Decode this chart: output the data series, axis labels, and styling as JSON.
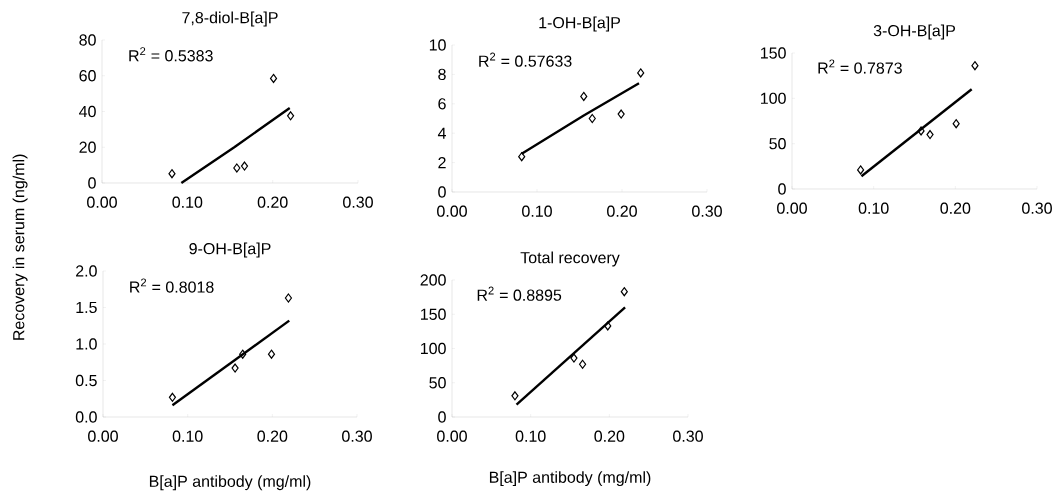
{
  "chart_data": [
    {
      "type": "scatter",
      "title": "7,8-diol-B[a]P",
      "ylabel": "Recovery in serum (ng/ml)",
      "annotations": [
        "R$^{2}$ = 0.5383"
      ],
      "xlim": [
        0,
        0.3
      ],
      "ylim": [
        0,
        80
      ],
      "xticks": [
        {
          "value": 0,
          "label": "0.00"
        },
        {
          "value": 0.1,
          "label": "0.10"
        },
        {
          "value": 0.2,
          "label": "0.20"
        },
        {
          "value": 0.3,
          "label": "0.30"
        }
      ],
      "yticks": [
        0,
        20,
        40,
        60,
        80
      ],
      "series": [
        {
          "type": "scatter",
          "marker": "diamond",
          "color": "#000000",
          "x": [
            0.082,
            0.158,
            0.167,
            0.201,
            0.221
          ],
          "values": [
            5.2,
            8.4,
            9.5,
            58.5,
            37.6
          ]
        },
        {
          "type": "line",
          "marker": "none",
          "line_style": "solid",
          "color": "#000000",
          "x": [
            0.093,
            0.155,
            0.22
          ],
          "values": [
            0,
            20,
            42
          ]
        }
      ]
    },
    {
      "type": "scatter",
      "title": "1-OH-B[a]P",
      "annotations": [
        "R$^{2}$ = 0.57633"
      ],
      "xlim": [
        0,
        0.3
      ],
      "ylim": [
        0,
        10
      ],
      "xticks": [
        {
          "value": 0,
          "label": "0.00"
        },
        {
          "value": 0.1,
          "label": "0.10"
        },
        {
          "value": 0.2,
          "label": "0.20"
        },
        {
          "value": 0.3,
          "label": "0.30"
        }
      ],
      "yticks": [
        0,
        2,
        4,
        6,
        8,
        10
      ],
      "series": [
        {
          "type": "scatter",
          "marker": "diamond",
          "color": "#000000",
          "x": [
            0.082,
            0.155,
            0.165,
            0.199,
            0.222
          ],
          "values": [
            2.4,
            6.5,
            5.0,
            5.3,
            8.1
          ]
        },
        {
          "type": "line",
          "marker": "none",
          "line_style": "solid",
          "color": "#000000",
          "x": [
            0.082,
            0.155,
            0.22
          ],
          "values": [
            2.6,
            5.2,
            7.4
          ]
        }
      ]
    },
    {
      "type": "scatter",
      "title": "3-OH-B[a]P",
      "annotations": [
        "R$^{2}$ = 0.7873"
      ],
      "xlim": [
        0,
        0.3
      ],
      "ylim": [
        0,
        150
      ],
      "xticks": [
        {
          "value": 0,
          "label": "0.00"
        },
        {
          "value": 0.1,
          "label": "0.10"
        },
        {
          "value": 0.2,
          "label": "0.20"
        },
        {
          "value": 0.3,
          "label": "0.30"
        }
      ],
      "yticks": [
        0,
        50,
        100,
        150
      ],
      "series": [
        {
          "type": "scatter",
          "marker": "diamond",
          "color": "#000000",
          "x": [
            0.084,
            0.158,
            0.169,
            0.201,
            0.224
          ],
          "values": [
            21,
            64,
            60,
            72,
            136
          ]
        },
        {
          "type": "line",
          "marker": "none",
          "line_style": "solid",
          "color": "#000000",
          "x": [
            0.085,
            0.22
          ],
          "values": [
            14,
            110
          ]
        }
      ]
    },
    {
      "type": "scatter",
      "title": "9-OH-B[a]P",
      "xlabel": "B[a]P antibody (mg/ml)",
      "annotations": [
        "R$^{2}$ = 0.8018"
      ],
      "xlim": [
        0,
        0.3
      ],
      "ylim": [
        0,
        2
      ],
      "xticks": [
        {
          "value": 0,
          "label": "0.00"
        },
        {
          "value": 0.1,
          "label": "0.10"
        },
        {
          "value": 0.2,
          "label": "0.20"
        },
        {
          "value": 0.3,
          "label": "0.30"
        }
      ],
      "yticks": [
        {
          "value": 0,
          "label": "0.0"
        },
        {
          "value": 0.5,
          "label": "0.5"
        },
        {
          "value": 1,
          "label": "1.0"
        },
        {
          "value": 1.5,
          "label": "1.5"
        },
        {
          "value": 2,
          "label": "2.0"
        }
      ],
      "series": [
        {
          "type": "scatter",
          "marker": "diamond",
          "color": "#000000",
          "x": [
            0.082,
            0.156,
            0.165,
            0.199,
            0.219
          ],
          "values": [
            0.27,
            0.67,
            0.86,
            0.86,
            1.63
          ]
        },
        {
          "type": "line",
          "marker": "none",
          "line_style": "solid",
          "color": "#000000",
          "x": [
            0.082,
            0.22
          ],
          "values": [
            0.16,
            1.32
          ]
        }
      ]
    },
    {
      "type": "scatter",
      "title": "Total recovery",
      "xlabel": "B[a]P antibody (mg/ml)",
      "annotations": [
        "R$^{2}$ = 0.8895"
      ],
      "xlim": [
        0,
        0.3
      ],
      "ylim": [
        0,
        200
      ],
      "xticks": [
        {
          "value": 0,
          "label": "0.00"
        },
        {
          "value": 0.1,
          "label": "0.10"
        },
        {
          "value": 0.2,
          "label": "0.20"
        },
        {
          "value": 0.3,
          "label": "0.30"
        }
      ],
      "yticks": [
        0,
        50,
        100,
        150,
        200
      ],
      "series": [
        {
          "type": "scatter",
          "marker": "diamond",
          "color": "#000000",
          "x": [
            0.08,
            0.155,
            0.166,
            0.198,
            0.219
          ],
          "values": [
            31,
            86,
            77,
            133,
            183
          ]
        },
        {
          "type": "line",
          "marker": "none",
          "line_style": "solid",
          "color": "#000000",
          "x": [
            0.082,
            0.22
          ],
          "values": [
            18,
            160
          ]
        }
      ]
    }
  ]
}
